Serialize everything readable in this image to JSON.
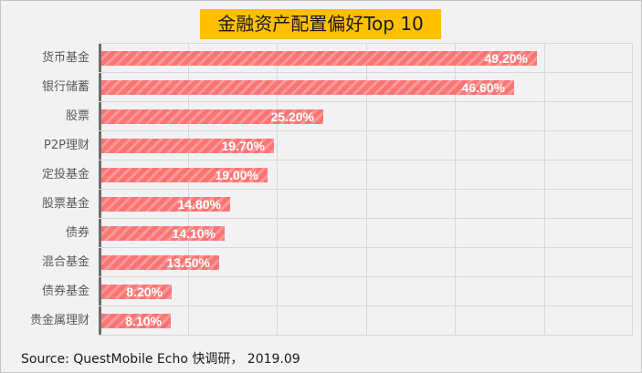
{
  "title": "金融资产配置偏好Top 10",
  "source": "Source: QuestMobile  Echo 快调研，  2019.09",
  "colors": {
    "title_bg": "#ffc000",
    "bar": "#ff7373",
    "bar_stripe": "#f59a9a",
    "grid": "#d6d6d8",
    "axis": "#6e6e6e"
  },
  "chart_data": {
    "type": "bar",
    "orientation": "horizontal",
    "title": "金融资产配置偏好Top 10",
    "categories": [
      "货币基金",
      "银行储蓄",
      "股票",
      "P2P理财",
      "定投基金",
      "股票基金",
      "债券",
      "混合基金",
      "债券基金",
      "贵金属理财"
    ],
    "values": [
      49.2,
      46.6,
      25.2,
      19.7,
      19.0,
      14.8,
      14.1,
      13.5,
      8.2,
      8.1
    ],
    "labels": [
      "49.20%",
      "46.60%",
      "25.20%",
      "19.70%",
      "19.00%",
      "14.80%",
      "14.10%",
      "13.50%",
      "8.20%",
      "8.10%"
    ],
    "xlabel": "",
    "ylabel": "",
    "xlim": [
      0,
      60
    ],
    "grid": true,
    "legend": false,
    "unit": "%",
    "source": "Source: QuestMobile  Echo 快调研，  2019.09"
  }
}
